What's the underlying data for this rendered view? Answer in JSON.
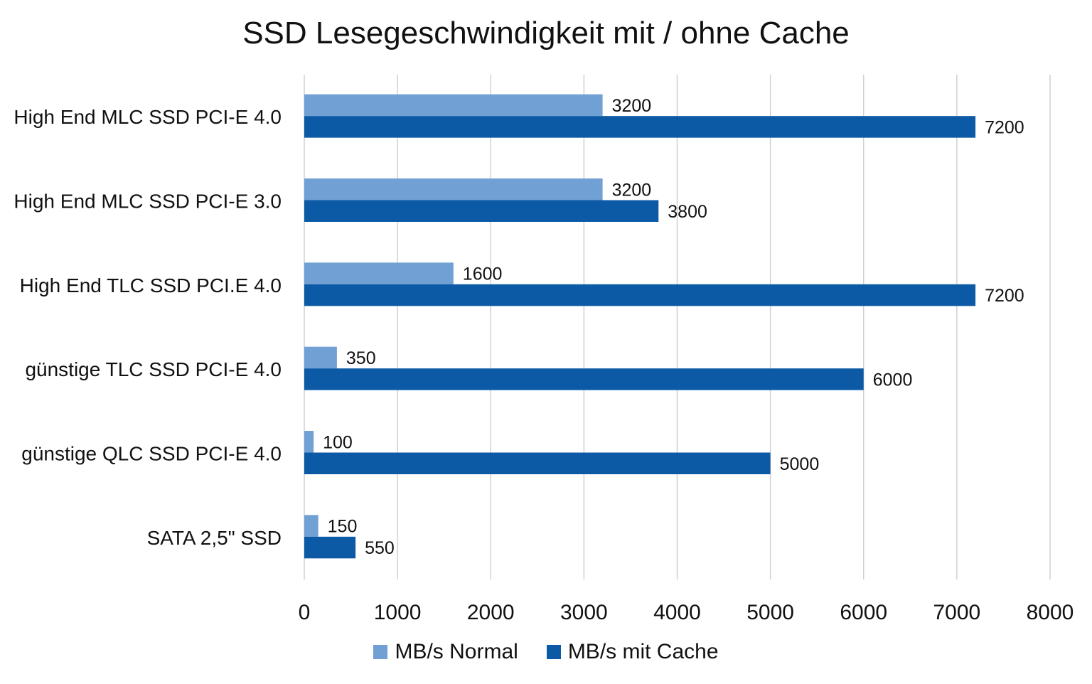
{
  "chart_data": {
    "type": "bar",
    "orientation": "horizontal",
    "title": "SSD Lesegeschwindigkeit mit / ohne Cache",
    "categories": [
      "High End MLC SSD PCI-E 4.0",
      "High End MLC SSD PCI-E 3.0",
      "High End TLC SSD PCI.E 4.0",
      "günstige TLC SSD PCI-E 4.0",
      "günstige QLC SSD PCI-E 4.0",
      "SATA 2,5\" SSD"
    ],
    "series": [
      {
        "name": "MB/s Normal",
        "color": "#70A0D4",
        "values": [
          3200,
          3200,
          1600,
          350,
          100,
          150
        ]
      },
      {
        "name": "MB/s mit Cache",
        "color": "#0C5AA6",
        "values": [
          7200,
          3800,
          7200,
          6000,
          5000,
          550
        ]
      }
    ],
    "xlim": [
      0,
      8000
    ],
    "xticks": [
      0,
      1000,
      2000,
      3000,
      4000,
      5000,
      6000,
      7000,
      8000
    ],
    "grid": true,
    "legend": "bottom",
    "xlabel": "",
    "ylabel": ""
  }
}
